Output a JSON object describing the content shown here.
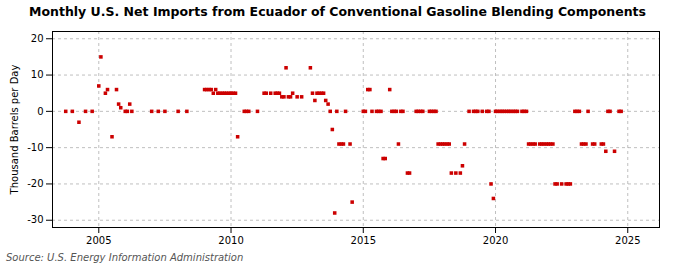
{
  "chart_data": {
    "type": "scatter",
    "title": "Monthly U.S. Net Imports from Ecuador of Conventional Gasoline Blending Components",
    "ylabel": "Thousand Barrels per Day",
    "source": "Source: U.S. Energy Information Administration",
    "color": "#cc0000",
    "marker": "square",
    "grid": true,
    "xlim": [
      2003.25,
      2026.2
    ],
    "xticks": [
      2005,
      2010,
      2015,
      2020,
      2025
    ],
    "ylim": [
      -32,
      22
    ],
    "yticks": [
      -30,
      -20,
      -10,
      0,
      10,
      20
    ],
    "x": [
      2003.75,
      2004.0,
      2004.25,
      2004.5,
      2004.75,
      2005.0,
      2005.08,
      2005.25,
      2005.33,
      2005.5,
      2005.67,
      2005.75,
      2005.83,
      2006.0,
      2006.08,
      2006.17,
      2006.25,
      2007.0,
      2007.25,
      2007.5,
      2008.0,
      2008.33,
      2009.0,
      2009.08,
      2009.17,
      2009.25,
      2009.33,
      2009.42,
      2009.5,
      2009.58,
      2009.67,
      2009.75,
      2009.83,
      2009.92,
      2010.0,
      2010.08,
      2010.17,
      2010.25,
      2010.5,
      2010.58,
      2010.67,
      2011.0,
      2011.25,
      2011.33,
      2011.5,
      2011.67,
      2011.75,
      2011.83,
      2011.92,
      2012.0,
      2012.08,
      2012.17,
      2012.25,
      2012.33,
      2012.5,
      2012.67,
      2013.0,
      2013.08,
      2013.17,
      2013.25,
      2013.33,
      2013.42,
      2013.5,
      2013.58,
      2013.67,
      2013.75,
      2013.83,
      2013.92,
      2014.0,
      2014.08,
      2014.17,
      2014.25,
      2014.33,
      2014.5,
      2014.58,
      2015.0,
      2015.08,
      2015.17,
      2015.25,
      2015.33,
      2015.5,
      2015.58,
      2015.67,
      2015.75,
      2015.83,
      2016.0,
      2016.08,
      2016.17,
      2016.25,
      2016.33,
      2016.42,
      2016.5,
      2016.67,
      2016.75,
      2017.0,
      2017.08,
      2017.17,
      2017.25,
      2017.5,
      2017.58,
      2017.67,
      2017.75,
      2017.83,
      2017.92,
      2018.0,
      2018.08,
      2018.17,
      2018.25,
      2018.33,
      2018.5,
      2018.67,
      2018.75,
      2018.83,
      2019.0,
      2019.17,
      2019.25,
      2019.33,
      2019.5,
      2019.67,
      2019.75,
      2019.83,
      2019.92,
      2020.0,
      2020.08,
      2020.17,
      2020.25,
      2020.33,
      2020.42,
      2020.5,
      2020.58,
      2020.67,
      2020.75,
      2020.83,
      2021.0,
      2021.08,
      2021.17,
      2021.25,
      2021.33,
      2021.42,
      2021.5,
      2021.67,
      2021.75,
      2021.83,
      2021.92,
      2022.0,
      2022.08,
      2022.17,
      2022.25,
      2022.33,
      2022.5,
      2022.67,
      2022.75,
      2022.83,
      2023.0,
      2023.08,
      2023.17,
      2023.25,
      2023.33,
      2023.42,
      2023.5,
      2023.67,
      2023.75,
      2024.0,
      2024.08,
      2024.17,
      2024.25,
      2024.33,
      2024.5,
      2024.67,
      2024.75
    ],
    "values": [
      0,
      0,
      -3,
      0,
      0,
      7,
      15,
      5,
      6,
      -7,
      6,
      2,
      1,
      0,
      0,
      2,
      0,
      0,
      0,
      0,
      0,
      0,
      6,
      6,
      6,
      6,
      5,
      6,
      5,
      5,
      5,
      5,
      5,
      5,
      5,
      5,
      5,
      -7,
      0,
      0,
      0,
      0,
      5,
      5,
      5,
      5,
      5,
      5,
      4,
      4,
      12,
      4,
      4,
      5,
      4,
      4,
      12,
      5,
      3,
      5,
      5,
      5,
      5,
      3,
      2,
      0,
      -5,
      -28,
      0,
      -9,
      -9,
      -9,
      0,
      -9,
      -25,
      0,
      0,
      6,
      6,
      0,
      0,
      0,
      0,
      -13,
      -13,
      6,
      0,
      0,
      0,
      -9,
      0,
      0,
      -17,
      -17,
      0,
      0,
      0,
      0,
      0,
      0,
      0,
      0,
      -9,
      -9,
      -9,
      -9,
      -9,
      -9,
      -17,
      -17,
      -17,
      -15,
      -9,
      0,
      0,
      0,
      0,
      0,
      0,
      0,
      -20,
      -24,
      0,
      0,
      0,
      0,
      0,
      0,
      0,
      0,
      0,
      0,
      0,
      0,
      0,
      0,
      -9,
      -9,
      -9,
      -9,
      -9,
      -9,
      -9,
      -9,
      -9,
      -9,
      -9,
      -20,
      -20,
      -20,
      -20,
      -20,
      -20,
      0,
      0,
      0,
      -9,
      -9,
      -9,
      0,
      -9,
      -9,
      -9,
      -9,
      -11,
      0,
      0,
      -11,
      0,
      0
    ]
  }
}
